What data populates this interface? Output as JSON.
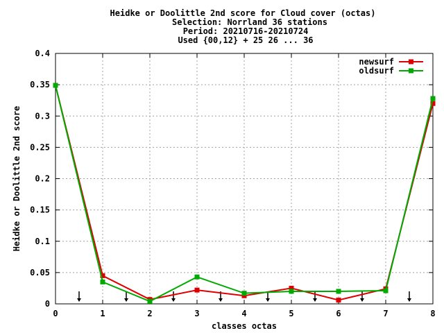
{
  "chart_data": {
    "type": "line",
    "title_lines": [
      "Heidke or Doolittle 2nd score  for Cloud cover (octas)",
      "Selection: Norrland     36 stations",
      "Period: 20210716-20210724",
      "Used {00,12} + 25 26 ... 36"
    ],
    "xlabel": "classes octas",
    "ylabel": "Heidke or Doolittle 2nd score",
    "xlim": [
      0,
      8
    ],
    "ylim": [
      0,
      0.4
    ],
    "x_ticks": [
      0,
      1,
      2,
      3,
      4,
      5,
      6,
      7,
      8
    ],
    "x_tick_labels": [
      "0",
      "1",
      "2",
      "3",
      "4",
      "5",
      "6",
      "7",
      "8"
    ],
    "y_ticks": [
      0,
      0.05,
      0.1,
      0.15,
      0.2,
      0.25,
      0.3,
      0.35,
      0.4
    ],
    "y_tick_labels": [
      "0",
      "0.05",
      "0.1",
      "0.15",
      "0.2",
      "0.25",
      "0.3",
      "0.35",
      "0.4"
    ],
    "grid": true,
    "legend_position": "top-right",
    "x": [
      0,
      1,
      2,
      3,
      4,
      5,
      6,
      7,
      8
    ],
    "series": [
      {
        "name": "newsurf",
        "color": "#dd0000",
        "values": [
          0.349,
          0.045,
          0.007,
          0.022,
          0.013,
          0.025,
          0.006,
          0.024,
          0.32
        ]
      },
      {
        "name": "oldsurf",
        "color": "#00aa00",
        "values": [
          0.349,
          0.035,
          0.004,
          0.043,
          0.017,
          0.02,
          0.02,
          0.021,
          0.328
        ]
      }
    ],
    "arrow_markers_x": [
      0.5,
      1.5,
      2.5,
      3.5,
      4.5,
      5.5,
      6.5,
      7.5
    ]
  }
}
